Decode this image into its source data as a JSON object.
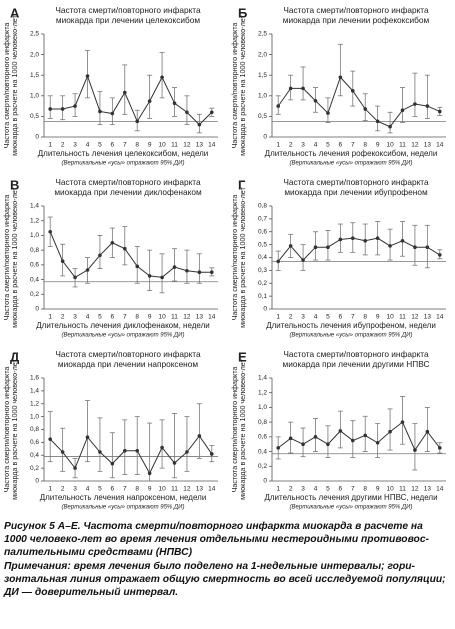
{
  "chart_data": [
    {
      "type": "line",
      "letter": "А",
      "title": [
        "Частота смерти/повторного инфаркта",
        "миокарда при лечении целекоксибом"
      ],
      "y_label": [
        "Частота смерти/повторного инфаркта",
        "миокарда в расчете на 1000 человеко-лет"
      ],
      "x_label": "Длительность лечения целекоксибом, недели",
      "note": "(Вертикальные «усы» отражают 95% ДИ)",
      "categories": [
        "1",
        "2",
        "3",
        "4",
        "5",
        "6",
        "7",
        "8",
        "9",
        "10",
        "11",
        "12",
        "13",
        "14"
      ],
      "values": [
        0.68,
        0.68,
        0.75,
        1.48,
        0.62,
        0.57,
        1.08,
        0.38,
        0.87,
        1.45,
        0.82,
        0.6,
        0.3,
        0.6
      ],
      "ci_low": [
        0.45,
        0.42,
        0.5,
        0.95,
        0.3,
        0.3,
        0.55,
        0.15,
        0.45,
        0.95,
        0.5,
        0.3,
        0.1,
        0.5
      ],
      "ci_high": [
        1.0,
        1.0,
        1.05,
        2.1,
        1.1,
        0.95,
        1.75,
        0.65,
        1.5,
        2.05,
        1.2,
        1.0,
        0.55,
        0.7
      ],
      "reference_line": 0.38,
      "ylim": [
        0,
        2.5
      ],
      "yticks": [
        0,
        {
          "value": 0.5,
          "label": "0,5"
        },
        {
          "value": 1,
          "label": "1,0"
        },
        {
          "value": 1.5,
          "label": "1,5"
        },
        {
          "value": 2,
          "label": "2,0"
        },
        {
          "value": 2.5,
          "label": "2,5"
        }
      ],
      "color": "#333333"
    },
    {
      "type": "line",
      "letter": "Б",
      "title": [
        "Частота смерти/повторного инфаркта",
        "миокарда при лечении рофекоксибом"
      ],
      "y_label": [
        "Частота смерти/повторного инфаркта",
        "миокарда в расчете на 1000 человеко-лет"
      ],
      "x_label": "Длительность лечения рофекоксибом, недели",
      "note": "(Вертикальные «усы» отражают 95% ДИ)",
      "categories": [
        "1",
        "2",
        "3",
        "4",
        "5",
        "6",
        "7",
        "8",
        "9",
        "10",
        "11",
        "12",
        "13",
        "14"
      ],
      "values": [
        0.75,
        1.18,
        1.18,
        0.88,
        0.58,
        1.45,
        1.12,
        0.68,
        0.38,
        0.25,
        0.65,
        0.8,
        0.75,
        0.62
      ],
      "ci_low": [
        0.55,
        0.9,
        0.9,
        0.6,
        0.35,
        1.0,
        0.75,
        0.4,
        0.15,
        0.1,
        0.35,
        0.5,
        0.45,
        0.52
      ],
      "ci_high": [
        1.0,
        1.5,
        1.7,
        1.2,
        0.95,
        2.25,
        1.6,
        1.05,
        0.75,
        0.6,
        1.2,
        1.55,
        1.5,
        0.72
      ],
      "reference_line": 0.38,
      "ylim": [
        0,
        2.5
      ],
      "yticks": [
        0,
        {
          "value": 0.5,
          "label": "0,5"
        },
        {
          "value": 1,
          "label": "1,0"
        },
        {
          "value": 1.5,
          "label": "1,5"
        },
        {
          "value": 2,
          "label": "2,0"
        },
        {
          "value": 2.5,
          "label": "2,5"
        }
      ],
      "color": "#333333"
    },
    {
      "type": "line",
      "letter": "В",
      "title": [
        "Частота смерти/повторного инфаркта",
        "миокарда при лечении диклофенаком"
      ],
      "y_label": [
        "Частота смерти/повторного инфаркта",
        "миокарда в расчете на 1000 человеко-лет"
      ],
      "x_label": "Длительность лечения диклофенаком, недели",
      "note": "(Вертикальные «усы» отражают 95% ДИ)",
      "categories": [
        "1",
        "2",
        "3",
        "4",
        "5",
        "6",
        "7",
        "8",
        "9",
        "10",
        "11",
        "12",
        "13",
        "14"
      ],
      "values": [
        1.05,
        0.65,
        0.43,
        0.53,
        0.73,
        0.9,
        0.82,
        0.58,
        0.45,
        0.43,
        0.57,
        0.52,
        0.5,
        0.5
      ],
      "ci_low": [
        0.85,
        0.45,
        0.3,
        0.35,
        0.55,
        0.7,
        0.6,
        0.35,
        0.25,
        0.22,
        0.38,
        0.35,
        0.35,
        0.45
      ],
      "ci_high": [
        1.25,
        0.88,
        0.55,
        0.7,
        1.0,
        1.1,
        1.12,
        0.85,
        0.8,
        0.75,
        0.82,
        0.8,
        0.75,
        0.56
      ],
      "reference_line": 0.37,
      "ylim": [
        0,
        1.4
      ],
      "yticks": [
        0,
        {
          "value": 0.2,
          "label": "0,2"
        },
        {
          "value": 0.4,
          "label": "0,4"
        },
        {
          "value": 0.6,
          "label": "0,6"
        },
        {
          "value": 0.8,
          "label": "0,8"
        },
        {
          "value": 1,
          "label": "1,0"
        },
        {
          "value": 1.2,
          "label": "1,2"
        },
        {
          "value": 1.4,
          "label": "1,4"
        }
      ],
      "color": "#333333"
    },
    {
      "type": "line",
      "letter": "Г",
      "title": [
        "Частота смерти/повторного инфаркта",
        "миокарда при лечении ибупрофеном"
      ],
      "y_label": [
        "Частота смерти/повторного инфаркта",
        "миокарда в расчете на 1000 человеко-лет"
      ],
      "x_label": "Длительность лечения ибупрофеном, недели",
      "note": "(Вертикальные «усы» отражают 95% ДИ)",
      "categories": [
        "1",
        "2",
        "3",
        "4",
        "5",
        "6",
        "7",
        "8",
        "9",
        "10",
        "11",
        "12",
        "13",
        "14"
      ],
      "values": [
        0.37,
        0.49,
        0.38,
        0.48,
        0.48,
        0.54,
        0.55,
        0.53,
        0.55,
        0.49,
        0.53,
        0.48,
        0.48,
        0.42
      ],
      "ci_low": [
        0.3,
        0.4,
        0.3,
        0.38,
        0.38,
        0.44,
        0.44,
        0.42,
        0.42,
        0.38,
        0.41,
        0.34,
        0.32,
        0.39
      ],
      "ci_high": [
        0.45,
        0.58,
        0.5,
        0.6,
        0.61,
        0.66,
        0.67,
        0.66,
        0.68,
        0.62,
        0.68,
        0.65,
        0.65,
        0.46
      ],
      "reference_line": 0.37,
      "ylim": [
        0,
        0.8
      ],
      "yticks": [
        0,
        {
          "value": 0.1,
          "label": "0,1"
        },
        {
          "value": 0.2,
          "label": "0,2"
        },
        {
          "value": 0.3,
          "label": "0,3"
        },
        {
          "value": 0.4,
          "label": "0,4"
        },
        {
          "value": 0.5,
          "label": "0,5"
        },
        {
          "value": 0.6,
          "label": "0,6"
        },
        {
          "value": 0.7,
          "label": "0,7"
        },
        {
          "value": 0.8,
          "label": "0,8"
        }
      ],
      "color": "#333333"
    },
    {
      "type": "line",
      "letter": "Д",
      "title": [
        "Частота смерти/повторного инфаркта",
        "миокарда при лечении напроксеном"
      ],
      "y_label": [
        "Частота смерти/повторного инфаркта",
        "миокарда в расчете на 1000 человеко-лет"
      ],
      "x_label": "Длительность лечения напроксеном, недели",
      "note": "(Вертикальные «усы» отражают 95% ДИ)",
      "categories": [
        "1",
        "2",
        "3",
        "4",
        "5",
        "6",
        "7",
        "8",
        "9",
        "10",
        "11",
        "12",
        "13",
        "14"
      ],
      "values": [
        0.65,
        0.45,
        0.2,
        0.68,
        0.45,
        0.27,
        0.47,
        0.47,
        0.12,
        0.52,
        0.28,
        0.45,
        0.7,
        0.42
      ],
      "ci_low": [
        0.3,
        0.15,
        0.05,
        0.3,
        0.15,
        0.05,
        0.1,
        0.1,
        0.0,
        0.2,
        0.05,
        0.15,
        0.35,
        0.3
      ],
      "ci_high": [
        1.08,
        0.82,
        0.35,
        1.25,
        0.98,
        0.75,
        0.95,
        1.0,
        0.9,
        0.95,
        1.05,
        1.0,
        1.2,
        0.55
      ],
      "reference_line": 0.38,
      "ylim": [
        0,
        1.6
      ],
      "yticks": [
        0,
        {
          "value": 0.2,
          "label": "0,2"
        },
        {
          "value": 0.4,
          "label": "0,4"
        },
        {
          "value": 0.6,
          "label": "0,6"
        },
        {
          "value": 0.8,
          "label": "0,8"
        },
        {
          "value": 1,
          "label": "1,0"
        },
        {
          "value": 1.2,
          "label": "1,2"
        },
        {
          "value": 1.4,
          "label": "1,4"
        },
        {
          "value": 1.6,
          "label": "1,6"
        }
      ],
      "color": "#333333"
    },
    {
      "type": "line",
      "letter": "Е",
      "title": [
        "Частота смерти/повторного инфаркта",
        "миокарда при лечении другими НПВС"
      ],
      "y_label": [
        "Частота смерти/повторного инфаркта",
        "миокарда в расчете на 1000 человеко-лет"
      ],
      "x_label": "Длительность лечения другими НПВС, недели",
      "note": "(Вертикальные «усы» отражают 95% ДИ)",
      "categories": [
        "1",
        "2",
        "3",
        "4",
        "5",
        "6",
        "7",
        "8",
        "9",
        "10",
        "11",
        "12",
        "13",
        "14"
      ],
      "values": [
        0.45,
        0.58,
        0.5,
        0.6,
        0.5,
        0.68,
        0.55,
        0.62,
        0.52,
        0.67,
        0.8,
        0.42,
        0.67,
        0.45
      ],
      "ci_low": [
        0.3,
        0.38,
        0.33,
        0.4,
        0.32,
        0.45,
        0.32,
        0.4,
        0.32,
        0.42,
        0.5,
        0.15,
        0.4,
        0.38
      ],
      "ci_high": [
        0.6,
        0.8,
        0.72,
        0.85,
        0.75,
        0.95,
        0.82,
        0.88,
        0.78,
        0.98,
        1.15,
        0.78,
        1.0,
        0.52
      ],
      "reference_line": 0.37,
      "ylim": [
        0,
        1.4
      ],
      "yticks": [
        0,
        {
          "value": 0.2,
          "label": "0,2"
        },
        {
          "value": 0.4,
          "label": "0,4"
        },
        {
          "value": 0.6,
          "label": "0,6"
        },
        {
          "value": 0.8,
          "label": "0,8"
        },
        {
          "value": 1,
          "label": "1,0"
        },
        {
          "value": 1.2,
          "label": "1,2"
        },
        {
          "value": 1.4,
          "label": "1,4"
        }
      ],
      "color": "#333333"
    }
  ],
  "caption": {
    "title_lines": [
      "Рисунок 5 А–Е. Частота смерти/повторного инфаркта миокарда в расчете на",
      "1000 человеко-лет во время лечения отдельными нестероидными противовос-",
      "палительными средствами (НПВС)"
    ],
    "note_lines": [
      "Примечания: время лечения было поделено на 1-недельные интервалы; гори-",
      "зонтальная линия отражает общую смертность во всей исследуемой популяции;",
      "ДИ — доверительный интервал."
    ]
  }
}
